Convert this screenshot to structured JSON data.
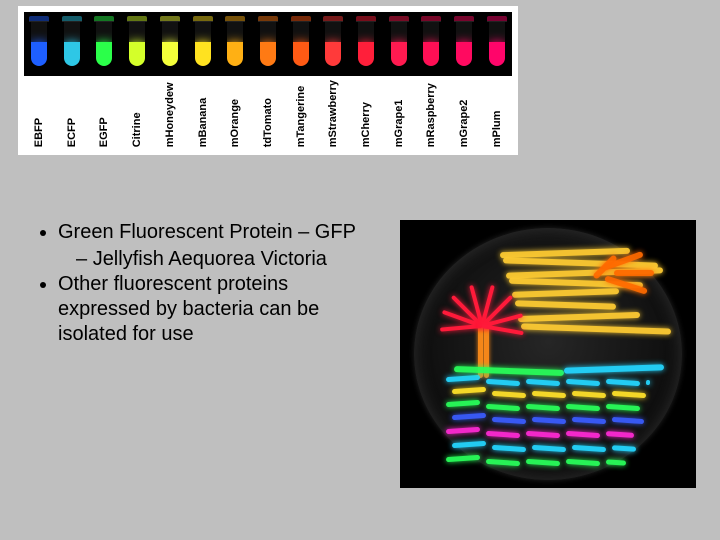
{
  "tubes": [
    {
      "label": "EBFP",
      "color": "#1e5fff"
    },
    {
      "label": "ECFP",
      "color": "#2ec7e6"
    },
    {
      "label": "EGFP",
      "color": "#2bff4a"
    },
    {
      "label": "Citrine",
      "color": "#d4ff2a"
    },
    {
      "label": "mHoneydew",
      "color": "#f4ff3a"
    },
    {
      "label": "mBanana",
      "color": "#ffe220"
    },
    {
      "label": "mOrange",
      "color": "#ffb014"
    },
    {
      "label": "tdTomato",
      "color": "#ff7a14"
    },
    {
      "label": "mTangerine",
      "color": "#ff5a14"
    },
    {
      "label": "mStrawberry",
      "color": "#ff3a3a"
    },
    {
      "label": "mCherry",
      "color": "#ff1f3a"
    },
    {
      "label": "mGrape1",
      "color": "#ff1a50"
    },
    {
      "label": "mRaspberry",
      "color": "#ff0f55"
    },
    {
      "label": "mGrape2",
      "color": "#ff0a60"
    },
    {
      "label": "mPlum",
      "color": "#ff056a"
    }
  ],
  "bullets": {
    "item1": "Green Fluorescent Protein – GFP",
    "item1_sub": "Jellyfish Aequorea Victoria",
    "item2": "Other fluorescent proteins expressed by bacteria can be isolated for use"
  },
  "petri": {
    "sky_color": "#ffcc33",
    "sun_color": "#ff6a00",
    "trunk_color": "#ff8c1a",
    "frond_color": "#ff1a3a",
    "wave_cyan": "#24d6ff",
    "wave_green": "#29ff5a",
    "wave_blue": "#3a5cff",
    "wave_magenta": "#ff2ad4",
    "wave_yellow": "#ffe22a"
  }
}
